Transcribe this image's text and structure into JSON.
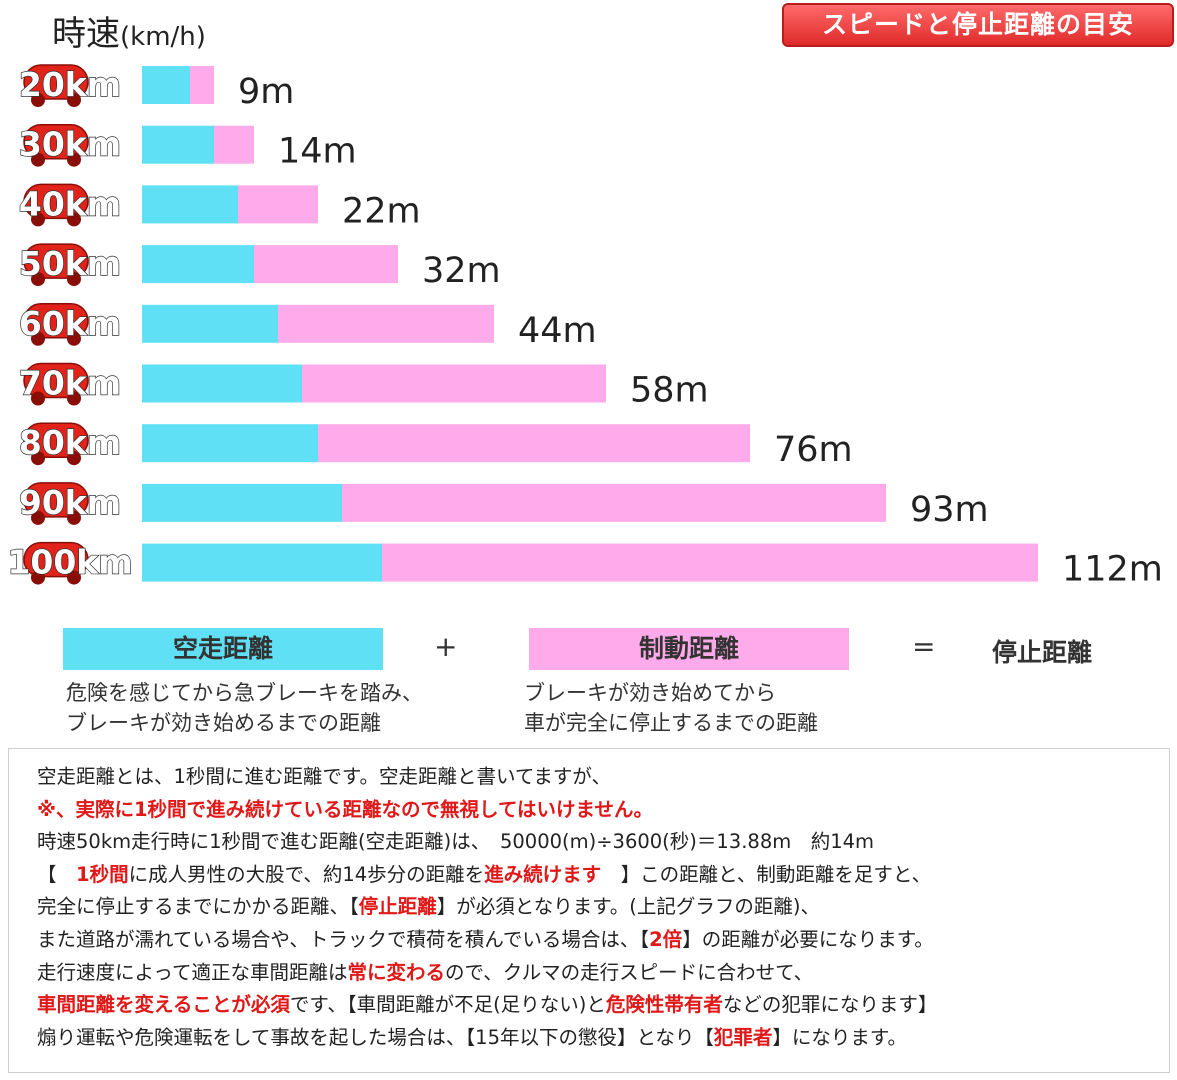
{
  "header": {
    "unit_main": "時速",
    "unit_paren": "(km/h)",
    "badge": "スピードと停止距離の目安"
  },
  "colors": {
    "reaction": "#5fe0f4",
    "braking": "#ffaaea",
    "car": "#e2231a",
    "red_text": "#e01818"
  },
  "chart_data": {
    "type": "bar",
    "orientation": "horizontal",
    "stacked": true,
    "categories": [
      "20km",
      "30km",
      "40km",
      "50km",
      "60km",
      "70km",
      "80km",
      "90km",
      "100km"
    ],
    "series": [
      {
        "name": "空走距離",
        "values": [
          6,
          9,
          12,
          14,
          17,
          20,
          22,
          25,
          30
        ]
      },
      {
        "name": "制動距離",
        "values": [
          3,
          5,
          10,
          18,
          27,
          38,
          54,
          68,
          82
        ]
      }
    ],
    "totals": [
      "9m",
      "14m",
      "22m",
      "32m",
      "44m",
      "58m",
      "76m",
      "93m",
      "112m"
    ]
  },
  "legend": {
    "reaction_label": "空走距離",
    "plus": "+",
    "braking_label": "制動距離",
    "equals": "=",
    "stopping_label": "停止距離",
    "reaction_desc_1": "危険を感じてから急ブレーキを踏み、",
    "reaction_desc_2": "ブレーキが効き始めるまでの距離",
    "braking_desc_1": "ブレーキが効き始めてから",
    "braking_desc_2": "車が完全に停止するまでの距離"
  },
  "notes": {
    "l1": "空走距離とは、1秒間に進む距離です。空走距離と書いてますが、",
    "l2": "※、実際に1秒間で進み続けている距離なので無視してはいけません。",
    "l3": "時速50km走行時に1秒間で進む距離(空走距離)は、　50000(m)÷3600(秒)＝13.88m　約14m",
    "l4a": "【　",
    "l4b": "1秒間",
    "l4c": "に成人男性の大股で、約14歩分の距離を",
    "l4d": "進み続けます",
    "l4e": "　】この距離と、制動距離を足すと、",
    "l5a": "完全に停止するまでにかかる距離、【",
    "l5b": "停止距離",
    "l5c": "】が必須となります。(上記グラフの距離)、",
    "l6a": "また道路が濡れている場合や、トラックで積荷を積んでいる場合は、【",
    "l6b": "2倍",
    "l6c": "】の距離が必要になります。",
    "l7a": "走行速度によって適正な車間距離は",
    "l7b": "常に変わる",
    "l7c": "ので、クルマの走行スピードに合わせて、",
    "l8a": "車間距離を変えることが必須",
    "l8b": "です、【車間距離が不足(足りない)と",
    "l8c": "危険性帯有者",
    "l8d": "などの犯罪になります】",
    "l9a": "煽り運転や危険運転をして事故を起した場合は、【15年以下の懲役】となり【",
    "l9b": "犯罪者",
    "l9c": "】になります。"
  }
}
